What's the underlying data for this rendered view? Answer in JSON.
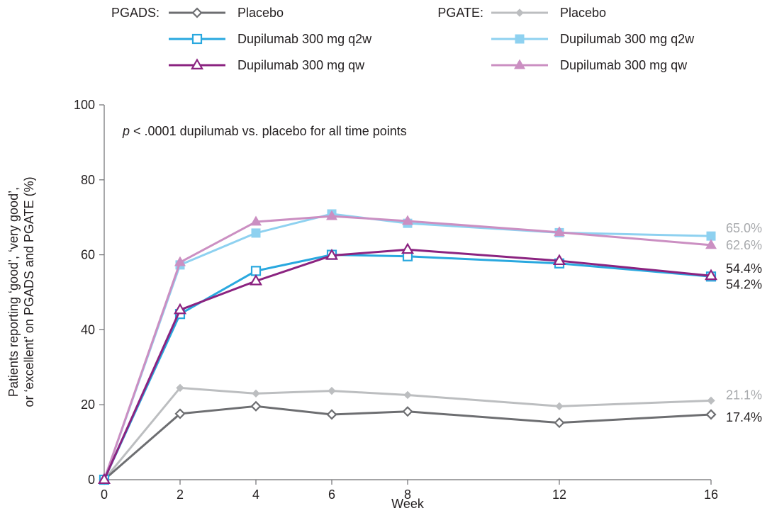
{
  "chart_data": {
    "type": "line",
    "xlabel": "Week",
    "ylabel_line1": "Patients reporting ‘good’, ‘very good’,",
    "ylabel_line2": "or ‘excellent’ on PGADS and PGATE (%)",
    "ylim": [
      0,
      100
    ],
    "xlim": [
      0,
      16
    ],
    "x_ticks": [
      "0",
      "2",
      "4",
      "6",
      "8",
      "12",
      "16"
    ],
    "y_ticks": [
      "0",
      "20",
      "40",
      "60",
      "80",
      "100"
    ],
    "annotation_p": "p",
    "annotation_text": " < .0001 dupilumab vs. placebo for all time points",
    "legend_groups": {
      "pgads": "PGADS:",
      "pgate": "PGATE:"
    },
    "grid": false,
    "x": [
      0,
      2,
      4,
      6,
      8,
      12,
      16
    ],
    "series": [
      {
        "id": "pgads-placebo",
        "group": "PGADS",
        "name": "Placebo",
        "color": "#6d6e71",
        "marker": "diamond-open",
        "values": [
          0,
          17.6,
          19.6,
          17.4,
          18.2,
          15.2,
          17.4
        ]
      },
      {
        "id": "pgads-q2w",
        "group": "PGADS",
        "name": "Dupilumab 300 mg q2w",
        "color": "#29a8df",
        "marker": "square-open",
        "values": [
          0,
          44.2,
          55.7,
          60.0,
          59.6,
          57.7,
          54.2
        ]
      },
      {
        "id": "pgads-qw",
        "group": "PGADS",
        "name": "Dupilumab 300 mg qw",
        "color": "#8b2380",
        "marker": "triangle-open",
        "values": [
          0,
          45.3,
          53.0,
          59.8,
          61.4,
          58.4,
          54.4
        ]
      },
      {
        "id": "pgate-placebo",
        "group": "PGATE",
        "name": "Placebo",
        "color": "#bcbec0",
        "marker": "diamond-filled",
        "values": [
          0,
          24.5,
          23.0,
          23.7,
          22.6,
          19.6,
          21.1
        ]
      },
      {
        "id": "pgate-q2w",
        "group": "PGATE",
        "name": "Dupilumab 300 mg q2w",
        "color": "#8ed1f0",
        "marker": "square-filled",
        "values": [
          0,
          57.3,
          65.8,
          70.9,
          68.4,
          65.9,
          65.0
        ]
      },
      {
        "id": "pgate-qw",
        "group": "PGATE",
        "name": "Dupilumab 300 mg qw",
        "color": "#cb8fc2",
        "marker": "triangle-filled",
        "values": [
          0,
          58.0,
          68.8,
          70.3,
          69.0,
          66.0,
          62.6
        ]
      }
    ],
    "end_labels": [
      {
        "text": "65.0%",
        "value": 65.0,
        "color": "#a7a9ac"
      },
      {
        "text": "62.6%",
        "value": 62.6,
        "color": "#a7a9ac"
      },
      {
        "text": "54.4%",
        "value": 54.4,
        "color": "#231f20"
      },
      {
        "text": "54.2%",
        "value": 54.2,
        "color": "#231f20"
      },
      {
        "text": "21.1%",
        "value": 21.1,
        "color": "#a7a9ac"
      },
      {
        "text": "17.4%",
        "value": 17.4,
        "color": "#231f20"
      }
    ]
  }
}
